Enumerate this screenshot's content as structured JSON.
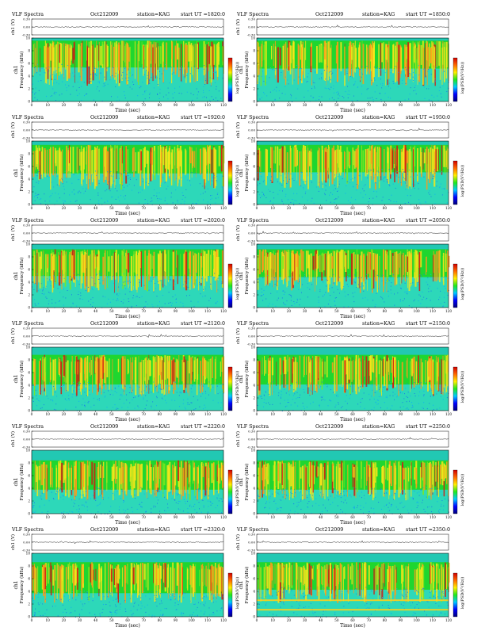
{
  "instrument": "VLF Spectra",
  "date": "Oct212009",
  "station": "station=KAG",
  "start_prefix": "start  UT  =",
  "amp_axis": {
    "label": "ch1 (V)",
    "ticks": [
      "0.30",
      "0.00",
      "-0.30"
    ],
    "range": [
      -0.3,
      0.3
    ]
  },
  "freq_axis": {
    "channel": "ch1",
    "label": "Frequency  (kHz)",
    "ticks": [
      "0",
      "2",
      "4",
      "6",
      "8",
      "10"
    ],
    "range": [
      0,
      10
    ]
  },
  "time_axis": {
    "label": "Time  (sec)",
    "ticks": [
      "0",
      "10",
      "20",
      "30",
      "40",
      "50",
      "60",
      "70",
      "80",
      "90",
      "100",
      "110",
      "120"
    ],
    "range": [
      0,
      120
    ]
  },
  "colorbar": {
    "label": "log(PSD(V²/Hz))",
    "stops": [
      "#00007a",
      "#0000ff",
      "#00c8ff",
      "#1ee81e",
      "#ffee00",
      "#ff6a00",
      "#d00000"
    ]
  },
  "chart_data": [
    {
      "type": "heatmap",
      "start_ut": "1820:0",
      "band_khz": [
        0.5,
        9.6
      ],
      "noise_level": 0.62
    },
    {
      "type": "heatmap",
      "start_ut": "1850:0",
      "band_khz": [
        0.5,
        9.6
      ],
      "noise_level": 0.6
    },
    {
      "type": "heatmap",
      "start_ut": "1920:0",
      "band_khz": [
        0.5,
        9.4
      ],
      "noise_level": 0.58
    },
    {
      "type": "heatmap",
      "start_ut": "1950:0",
      "band_khz": [
        0.5,
        9.4
      ],
      "noise_level": 0.6
    },
    {
      "type": "heatmap",
      "start_ut": "2020:0",
      "band_khz": [
        0.5,
        9.2
      ],
      "noise_level": 0.6
    },
    {
      "type": "heatmap",
      "start_ut": "2050:0",
      "band_khz": [
        0.5,
        9.2
      ],
      "noise_level": 0.58
    },
    {
      "type": "heatmap",
      "start_ut": "2120:0",
      "band_khz": [
        0.5,
        8.8
      ],
      "noise_level": 0.52
    },
    {
      "type": "heatmap",
      "start_ut": "2150:0",
      "band_khz": [
        0.5,
        8.8
      ],
      "noise_level": 0.52
    },
    {
      "type": "heatmap",
      "start_ut": "2220:0",
      "band_khz": [
        0.5,
        8.4
      ],
      "noise_level": 0.5
    },
    {
      "type": "heatmap",
      "start_ut": "2250:0",
      "band_khz": [
        0.5,
        8.4
      ],
      "noise_level": 0.5
    },
    {
      "type": "heatmap",
      "start_ut": "2320:0",
      "band_khz": [
        0.5,
        8.6
      ],
      "noise_level": 0.48
    },
    {
      "type": "heatmap",
      "start_ut": "2350:0",
      "band_khz": [
        0.5,
        8.6
      ],
      "noise_level": 0.55,
      "tones_khz": [
        2.6,
        1.1
      ]
    }
  ]
}
